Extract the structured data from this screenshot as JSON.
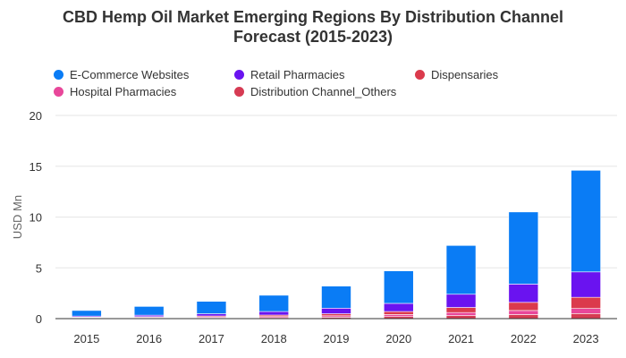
{
  "chart_data": {
    "type": "bar",
    "stacked": true,
    "title_line1": "CBD Hemp Oil Market Emerging Regions By Distribution Channel",
    "title_line2": "Forecast (2015-2023)",
    "xlabel": "",
    "ylabel": "USD Mn",
    "ylim": [
      0,
      20
    ],
    "yticks": [
      0,
      5,
      10,
      15,
      20
    ],
    "grid": true,
    "legend_position": "top",
    "categories": [
      "2015",
      "2016",
      "2017",
      "2018",
      "2019",
      "2020",
      "2021",
      "2022",
      "2023"
    ],
    "series": [
      {
        "name": "Distribution Channel_Others",
        "color": "#d63b53",
        "values": [
          0.05,
          0.06,
          0.08,
          0.1,
          0.14,
          0.2,
          0.3,
          0.4,
          0.5
        ]
      },
      {
        "name": "Hospital Pharmacies",
        "color": "#e8479a",
        "values": [
          0.05,
          0.06,
          0.08,
          0.1,
          0.14,
          0.2,
          0.3,
          0.4,
          0.5
        ]
      },
      {
        "name": "Dispensaries",
        "color": "#db3a4c",
        "values": [
          0.05,
          0.07,
          0.1,
          0.15,
          0.2,
          0.3,
          0.5,
          0.8,
          1.1
        ]
      },
      {
        "name": "Retail Pharmacies",
        "color": "#6a13f0",
        "values": [
          0.1,
          0.15,
          0.22,
          0.35,
          0.55,
          0.8,
          1.3,
          1.8,
          2.5
        ]
      },
      {
        "name": "E-Commerce Websites",
        "color": "#0a7cf5",
        "values": [
          0.55,
          0.86,
          1.22,
          1.6,
          2.17,
          3.2,
          4.8,
          7.1,
          10.0
        ]
      }
    ],
    "legend": [
      {
        "name": "E-Commerce Websites",
        "color": "#0a7cf5"
      },
      {
        "name": "Retail Pharmacies",
        "color": "#6a13f0"
      },
      {
        "name": "Dispensaries",
        "color": "#db3a4c"
      },
      {
        "name": "Hospital Pharmacies",
        "color": "#e8479a"
      },
      {
        "name": "Distribution Channel_Others",
        "color": "#d63b53"
      }
    ]
  }
}
